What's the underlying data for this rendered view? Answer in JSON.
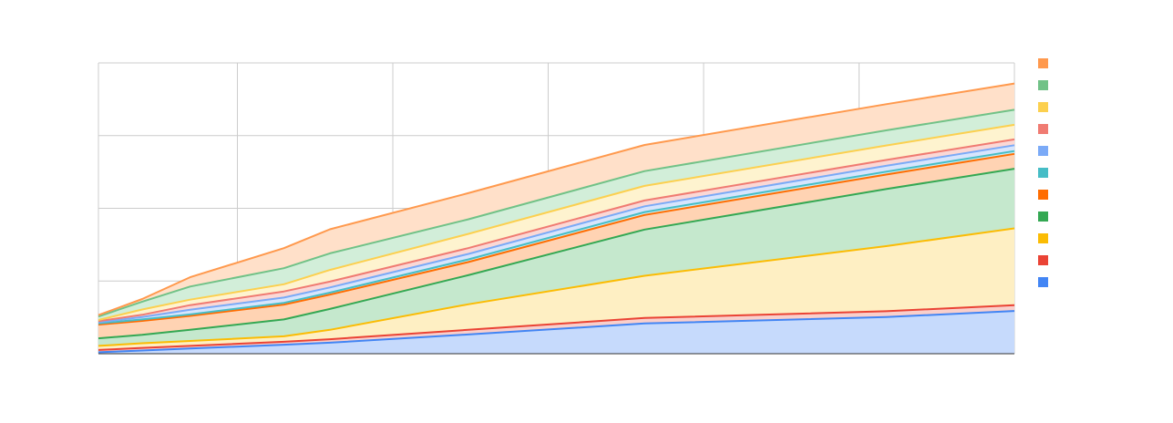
{
  "chart_data": {
    "type": "area",
    "stacked": true,
    "title": "",
    "xlabel": "",
    "ylabel": "",
    "xlim": [
      0,
      1
    ],
    "ylim": [
      0,
      1
    ],
    "grid": true,
    "legend_position": "right",
    "x": [
      0,
      0.0478,
      0.1001,
      0.2025,
      0.2527,
      0.4036,
      0.5963,
      0.8599,
      1.0
    ],
    "series": [
      {
        "name": "",
        "color": "#4285f4",
        "fill": "#c6dafc",
        "values": [
          0.005,
          0.011,
          0.018,
          0.031,
          0.038,
          0.066,
          0.104,
          0.126,
          0.147
        ]
      },
      {
        "name": "",
        "color": "#ea4335",
        "fill": "#f9cfcb",
        "values": [
          0.008,
          0.009,
          0.009,
          0.01,
          0.012,
          0.016,
          0.019,
          0.02,
          0.02
        ]
      },
      {
        "name": "",
        "color": "#fbbc04",
        "fill": "#feefc3",
        "values": [
          0.014,
          0.016,
          0.017,
          0.019,
          0.032,
          0.088,
          0.145,
          0.224,
          0.264
        ]
      },
      {
        "name": "",
        "color": "#34a853",
        "fill": "#c5e8cd",
        "values": [
          0.026,
          0.029,
          0.038,
          0.058,
          0.072,
          0.1,
          0.159,
          0.196,
          0.205
        ]
      },
      {
        "name": "",
        "color": "#ff6d01",
        "fill": "#ffd3b3",
        "values": [
          0.047,
          0.048,
          0.048,
          0.051,
          0.049,
          0.045,
          0.05,
          0.05,
          0.051
        ]
      },
      {
        "name": "",
        "color": "#46bdc6",
        "fill": "#c8ebee",
        "values": [
          0.004,
          0.005,
          0.005,
          0.006,
          0.007,
          0.009,
          0.01,
          0.01,
          0.01
        ]
      },
      {
        "name": "",
        "color": "#7baaf7",
        "fill": "#d7e5fd",
        "values": [
          0.004,
          0.008,
          0.016,
          0.018,
          0.018,
          0.019,
          0.02,
          0.02,
          0.02
        ]
      },
      {
        "name": "",
        "color": "#f07b72",
        "fill": "#fbd8d5",
        "values": [
          0.004,
          0.008,
          0.016,
          0.021,
          0.02,
          0.02,
          0.02,
          0.02,
          0.02
        ]
      },
      {
        "name": "",
        "color": "#fcd04f",
        "fill": "#fef3cf",
        "values": [
          0.004,
          0.018,
          0.019,
          0.025,
          0.04,
          0.049,
          0.05,
          0.05,
          0.05
        ]
      },
      {
        "name": "",
        "color": "#71c287",
        "fill": "#d2eed9",
        "values": [
          0.012,
          0.027,
          0.045,
          0.055,
          0.057,
          0.05,
          0.051,
          0.052,
          0.052
        ]
      },
      {
        "name": "",
        "color": "#ff994d",
        "fill": "#ffe0c9",
        "values": [
          0.005,
          0.009,
          0.032,
          0.069,
          0.083,
          0.09,
          0.09,
          0.09,
          0.09
        ]
      }
    ],
    "legend_order": [
      10,
      9,
      8,
      7,
      6,
      5,
      4,
      3,
      2,
      1,
      0
    ]
  }
}
